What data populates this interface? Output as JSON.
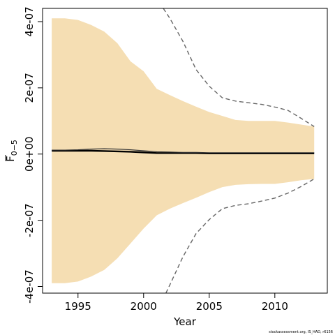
{
  "chart_data": {
    "type": "area",
    "title": "",
    "xlabel": "Year",
    "ylabel": {
      "main": "F",
      "subscript": "0−5",
      "overline": true
    },
    "xlim": [
      1992.3,
      2014.0
    ],
    "ylim": [
      -4.2e-07,
      4.4e-07
    ],
    "x_ticks": [
      {
        "value": 1995,
        "label": "1995"
      },
      {
        "value": 2000,
        "label": "2000"
      },
      {
        "value": 2005,
        "label": "2005"
      },
      {
        "value": 2010,
        "label": "2010"
      }
    ],
    "y_ticks": [
      {
        "value": -4e-07,
        "label": "-4e-07"
      },
      {
        "value": -2e-07,
        "label": "-2e-07"
      },
      {
        "value": 0,
        "label": "0e+00"
      },
      {
        "value": 2e-07,
        "label": "2e-07"
      },
      {
        "value": 4e-07,
        "label": "4e-07"
      }
    ],
    "grid": false,
    "legend": "none",
    "x": [
      1993,
      1994,
      1995,
      1996,
      1997,
      1998,
      1999,
      2000,
      2001,
      2002,
      2003,
      2004,
      2005,
      2006,
      2007,
      2008,
      2009,
      2010,
      2011,
      2012,
      2013
    ],
    "series": [
      {
        "role": "band",
        "color": "#f5deb3",
        "upper": [
          4.1e-07,
          4.1e-07,
          4.05e-07,
          3.9e-07,
          3.7e-07,
          3.35e-07,
          2.8e-07,
          2.5e-07,
          1.97e-07,
          1.78e-07,
          1.6e-07,
          1.43e-07,
          1.27e-07,
          1.15e-07,
          1.03e-07,
          1e-07,
          1e-07,
          1e-07,
          9.5e-08,
          8.9e-08,
          8.3e-08
        ],
        "lower": [
          -3.9e-07,
          -3.9e-07,
          -3.85e-07,
          -3.7e-07,
          -3.5e-07,
          -3.15e-07,
          -2.7e-07,
          -2.25e-07,
          -1.85e-07,
          -1.65e-07,
          -1.48e-07,
          -1.32e-07,
          -1.15e-07,
          -1e-07,
          -9.3e-08,
          -9.1e-08,
          -9e-08,
          -9e-08,
          -8.5e-08,
          -7.9e-08,
          -7.5e-08
        ]
      },
      {
        "role": "dashed-upper",
        "color": "#666666",
        "x": [
          2001.5,
          2002,
          2003,
          2004,
          2005,
          2006,
          2007,
          2008,
          2009,
          2010,
          2011,
          2012,
          2013
        ],
        "values": [
          4.4e-07,
          4.1e-07,
          3.4e-07,
          2.55e-07,
          2.05e-07,
          1.7e-07,
          1.6e-07,
          1.55e-07,
          1.5e-07,
          1.42e-07,
          1.32e-07,
          1.08e-07,
          8.3e-08
        ]
      },
      {
        "role": "dashed-lower",
        "color": "#666666",
        "x": [
          2001.7,
          2002,
          2003,
          2004,
          2005,
          2006,
          2007,
          2008,
          2009,
          2010,
          2011,
          2012,
          2013
        ],
        "values": [
          -4.2e-07,
          -3.95e-07,
          -3.1e-07,
          -2.4e-07,
          -1.98e-07,
          -1.65e-07,
          -1.55e-07,
          -1.5e-07,
          -1.42e-07,
          -1.33e-07,
          -1.18e-07,
          -9.8e-08,
          -7.5e-08
        ]
      },
      {
        "role": "median",
        "color": "#000000",
        "values": [
          1e-08,
          1e-08,
          1e-08,
          1e-08,
          9e-09,
          8e-09,
          7e-09,
          5e-09,
          3e-09,
          3e-09,
          3e-09,
          3e-09,
          2e-09,
          2e-09,
          2e-09,
          2e-09,
          2e-09,
          2e-09,
          2e-09,
          2e-09,
          2e-09
        ]
      },
      {
        "role": "mean",
        "color": "#333333",
        "values": [
          1.2e-08,
          1.2e-08,
          1.3e-08,
          1.5e-08,
          1.6e-08,
          1.5e-08,
          1.3e-08,
          1e-08,
          7e-09,
          6e-09,
          5e-09,
          5e-09,
          4e-09,
          4e-09,
          4e-09,
          4e-09,
          4e-09,
          4e-09,
          4e-09,
          4e-09,
          4e-09
        ]
      }
    ]
  },
  "footer": {
    "credit": "stockassessment.org, IS_HAD, r6156"
  }
}
